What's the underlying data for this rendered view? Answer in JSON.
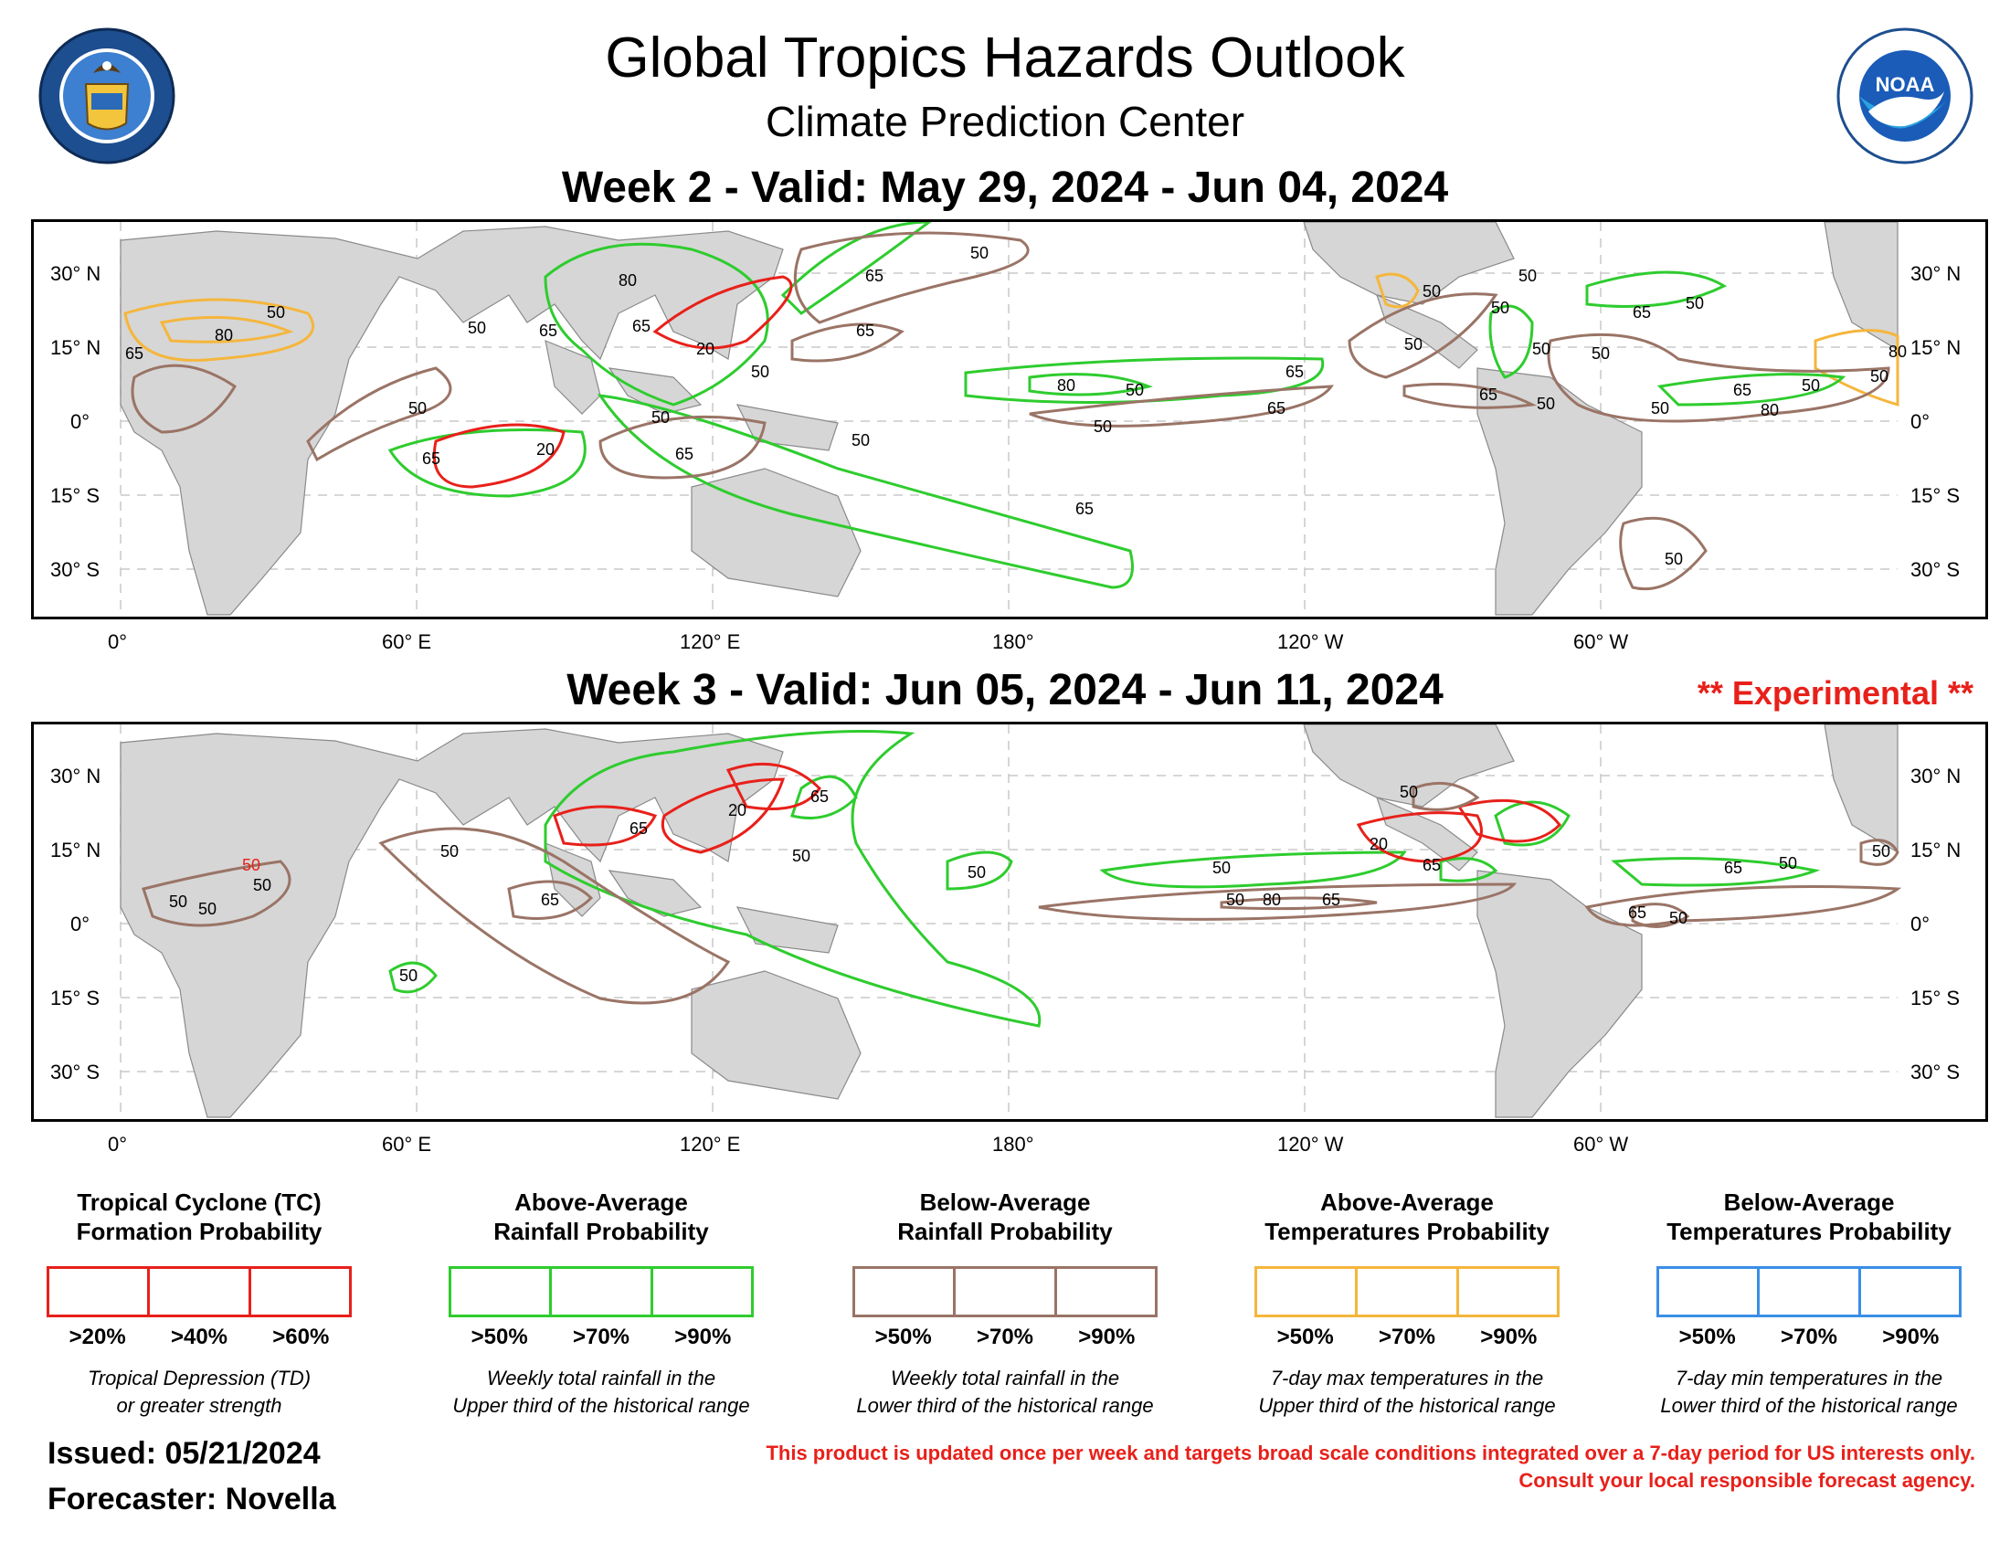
{
  "header": {
    "title": "Global Tropics Hazards Outlook",
    "subtitle": "Climate Prediction Center",
    "left_seal_text": "DEPARTMENT OF COMMERCE · UNITED STATES OF AMERICA",
    "right_logo_text": "NOAA",
    "right_logo_ring": "NATIONAL OCEANIC AND ATMOSPHERIC ADMINISTRATION · U.S. DEPARTMENT OF COMMERCE"
  },
  "week2": {
    "title": "Week 2 - Valid: May 29, 2024 - Jun 04, 2024",
    "contour_labels": {
      "tc": [
        "20",
        "20"
      ],
      "rain_above": [
        "65",
        "80",
        "65",
        "65",
        "50",
        "65",
        "80",
        "50",
        "65",
        "50",
        "65",
        "50",
        "65",
        "50",
        "65",
        "50"
      ],
      "rain_below": [
        "50",
        "50",
        "65",
        "50",
        "50",
        "50",
        "65",
        "50",
        "50",
        "50",
        "65",
        "50",
        "50",
        "80",
        "65",
        "50",
        "65",
        "50",
        "50",
        "80",
        "50",
        "50",
        "65",
        "50",
        "65"
      ],
      "temp_above": [
        "50",
        "80",
        "65",
        "50",
        "80",
        "50"
      ]
    }
  },
  "week3": {
    "title": "Week 3 - Valid: Jun 05, 2024 - Jun 11, 2024",
    "experimental": "** Experimental **",
    "contour_labels": {
      "tc": [
        "20",
        "20",
        "50"
      ],
      "rain_above": [
        "65",
        "65",
        "50",
        "50",
        "65",
        "65",
        "50",
        "50"
      ],
      "rain_below": [
        "50",
        "50",
        "50",
        "65",
        "50",
        "50",
        "80",
        "65",
        "50",
        "65",
        "50",
        "50",
        "50"
      ]
    }
  },
  "axes": {
    "lat_labels": [
      "30° N",
      "15° N",
      "0°",
      "15° S",
      "30° S"
    ],
    "lat_labels_right": [
      "30° N",
      "15° N",
      "0°",
      "15° S",
      "30° S"
    ],
    "lon_labels": [
      "0°",
      "60° E",
      "120° E",
      "180°",
      "120° W",
      "60° W"
    ]
  },
  "legend": [
    {
      "title": "Tropical Cyclone (TC)\nFormation Probability",
      "color": "#e8201a",
      "pcts": [
        ">20%",
        ">40%",
        ">60%"
      ],
      "desc": "Tropical Depression (TD)\nor greater strength"
    },
    {
      "title": "Above-Average\nRainfall Probability",
      "color": "#2ecc2e",
      "pcts": [
        ">50%",
        ">70%",
        ">90%"
      ],
      "desc": "Weekly total rainfall in the\nUpper third of the historical range"
    },
    {
      "title": "Below-Average\nRainfall Probability",
      "color": "#9a7466",
      "pcts": [
        ">50%",
        ">70%",
        ">90%"
      ],
      "desc": "Weekly total rainfall in the\nLower third of the historical range"
    },
    {
      "title": "Above-Average\nTemperatures Probability",
      "color": "#f5b63c",
      "pcts": [
        ">50%",
        ">70%",
        ">90%"
      ],
      "desc": "7-day max temperatures in the\nUpper third of the historical range"
    },
    {
      "title": "Below-Average\nTemperatures Probability",
      "color": "#3a8ee6",
      "pcts": [
        ">50%",
        ">70%",
        ">90%"
      ],
      "desc": "7-day min temperatures in the\nLower third of the historical range"
    }
  ],
  "footer": {
    "issued": "Issued: 05/21/2024",
    "forecaster": "Forecaster: Novella",
    "disclaimer_line1": "This product is updated once per week and targets broad scale conditions integrated over a 7-day period for US interests only.",
    "disclaimer_line2": "Consult your local responsible forecast agency."
  },
  "colors": {
    "tc": "#e8201a",
    "rain_above": "#2ecc2e",
    "rain_below": "#9a7466",
    "temp_above": "#f5b63c",
    "temp_below": "#3a8ee6",
    "land": "#d6d6d6"
  }
}
